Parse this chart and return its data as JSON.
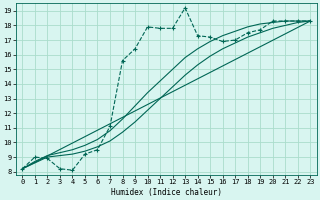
{
  "xlabel": "Humidex (Indice chaleur)",
  "bg_color": "#d8f5f0",
  "grid_color": "#aaddcc",
  "line_color": "#006655",
  "xlim": [
    -0.5,
    23.5
  ],
  "ylim": [
    7.8,
    19.5
  ],
  "xticks": [
    0,
    1,
    2,
    3,
    4,
    5,
    6,
    7,
    8,
    9,
    10,
    11,
    12,
    13,
    14,
    15,
    16,
    17,
    18,
    19,
    20,
    21,
    22,
    23
  ],
  "yticks": [
    8,
    9,
    10,
    11,
    12,
    13,
    14,
    15,
    16,
    17,
    18,
    19
  ],
  "dotted_x": [
    0,
    1,
    2,
    3,
    4,
    5,
    6,
    7,
    8,
    9,
    10,
    11,
    12,
    13,
    14,
    15,
    16,
    17,
    18,
    19,
    20,
    21,
    22,
    23
  ],
  "dotted_y": [
    8.2,
    9.0,
    8.9,
    8.2,
    8.1,
    9.2,
    9.5,
    11.1,
    15.6,
    16.4,
    17.9,
    17.8,
    17.8,
    19.2,
    17.3,
    17.2,
    16.9,
    17.0,
    17.5,
    17.7,
    18.3,
    18.3,
    18.3,
    18.3
  ],
  "line1_x": [
    0,
    23
  ],
  "line1_y": [
    8.2,
    18.3
  ],
  "line2_x": [
    0,
    1,
    2,
    3,
    4,
    5,
    6,
    7,
    8,
    9,
    10,
    11,
    12,
    13,
    14,
    15,
    16,
    17,
    18,
    19,
    20,
    21,
    22,
    23
  ],
  "line2_y": [
    8.2,
    8.6,
    9.0,
    9.1,
    9.2,
    9.4,
    9.7,
    10.1,
    10.7,
    11.4,
    12.2,
    13.0,
    13.8,
    14.6,
    15.3,
    15.9,
    16.4,
    16.8,
    17.2,
    17.5,
    17.8,
    18.0,
    18.2,
    18.3
  ],
  "line3_x": [
    0,
    1,
    2,
    3,
    4,
    5,
    6,
    7,
    8,
    9,
    10,
    11,
    12,
    13,
    14,
    15,
    16,
    17,
    18,
    19,
    20,
    21,
    22,
    23
  ],
  "line3_y": [
    8.2,
    8.7,
    9.1,
    9.3,
    9.5,
    9.8,
    10.2,
    10.8,
    11.6,
    12.5,
    13.4,
    14.2,
    15.0,
    15.8,
    16.4,
    16.9,
    17.3,
    17.6,
    17.9,
    18.1,
    18.2,
    18.3,
    18.3,
    18.3
  ]
}
